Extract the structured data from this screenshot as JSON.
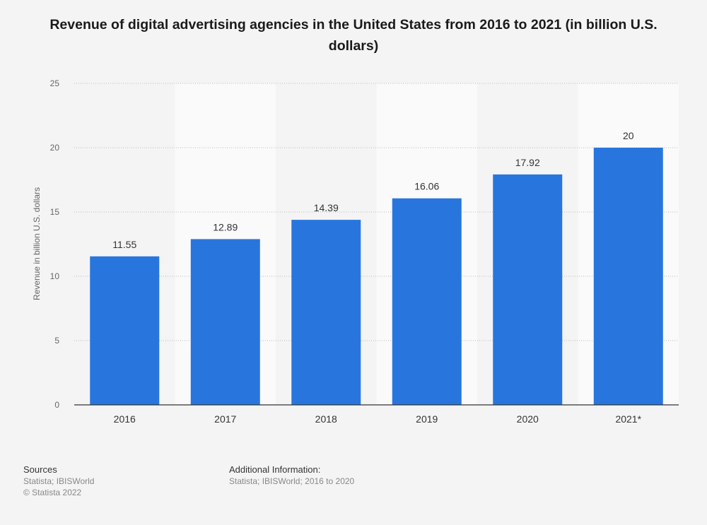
{
  "chart_data": {
    "type": "bar",
    "title": "Revenue of digital advertising agencies in the United States from 2016 to 2021 (in billion U.S. dollars)",
    "categories": [
      "2016",
      "2017",
      "2018",
      "2019",
      "2020",
      "2021*"
    ],
    "values": [
      11.55,
      12.89,
      14.39,
      16.06,
      17.92,
      20
    ],
    "value_labels": [
      "11.55",
      "12.89",
      "14.39",
      "16.06",
      "17.92",
      "20"
    ],
    "xlabel": "",
    "ylabel": "Revenue in billion U.S. dollars",
    "ylim": [
      0,
      25
    ],
    "yticks": [
      0,
      5,
      10,
      15,
      20,
      25
    ],
    "grid": true,
    "colors": {
      "bar": "#2876dd",
      "band": "#fafafa",
      "grid": "#bbbbbb",
      "axis": "#333333"
    }
  },
  "footer": {
    "sources_heading": "Sources",
    "sources_line1": "Statista; IBISWorld",
    "sources_line2": "© Statista 2022",
    "additional_heading": "Additional Information:",
    "additional_line1": "Statista; IBISWorld; 2016 to 2020"
  }
}
